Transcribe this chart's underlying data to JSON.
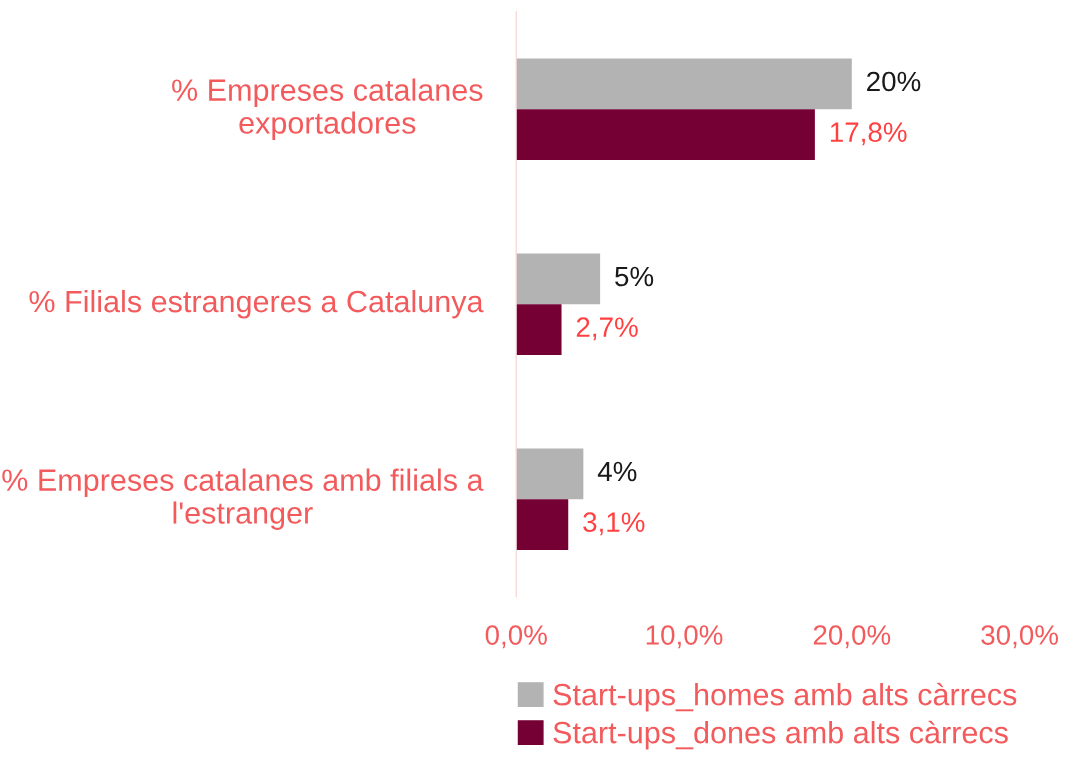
{
  "chart_data": {
    "type": "bar",
    "orientation": "horizontal",
    "categories": [
      "% Empreses catalanes exportadores",
      "% Filials estrangeres a Catalunya",
      "% Empreses catalanes amb filials a l'estranger"
    ],
    "series": [
      {
        "name": "Start-ups_homes amb alts càrrecs",
        "color": "#b3b3b3",
        "values": [
          20,
          5,
          4
        ],
        "value_labels": [
          "20%",
          "5%",
          "4%"
        ]
      },
      {
        "name": "Start-ups_dones amb alts càrrecs",
        "color": "#750033",
        "values": [
          17.8,
          2.7,
          3.1
        ],
        "value_labels": [
          "17,8%",
          "2,7%",
          "3,1%"
        ]
      }
    ],
    "xlim": [
      0,
      30
    ],
    "xticks": [
      {
        "value": 0,
        "label": "0,0%"
      },
      {
        "value": 10,
        "label": "10,0%"
      },
      {
        "value": 20,
        "label": "20,0%"
      },
      {
        "value": 30,
        "label": "30,0%"
      }
    ],
    "grid": false,
    "legend": "bottom"
  }
}
